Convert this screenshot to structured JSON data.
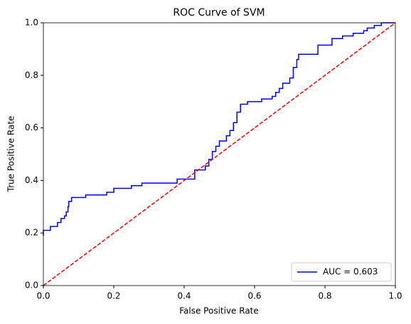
{
  "chart_data": {
    "type": "line",
    "title": "ROC Curve of SVM",
    "xlabel": "False Positive Rate",
    "ylabel": "True Positive Rate",
    "xlim": [
      0,
      1
    ],
    "ylim": [
      0,
      1
    ],
    "xticks": [
      {
        "value": 0,
        "label": "0.0"
      },
      0.2,
      0.4,
      0.6,
      0.8,
      {
        "value": 1,
        "label": "1.0"
      }
    ],
    "yticks": [
      {
        "value": 0,
        "label": "0.0"
      },
      0.2,
      0.4,
      0.6,
      0.8,
      {
        "value": 1,
        "label": "1.0"
      }
    ],
    "legend": "lower right",
    "grid": false,
    "series": [
      {
        "name": "AUC = 0.603",
        "color": "blue",
        "dashed": false,
        "x": [
          0,
          0,
          0.02,
          0.02,
          0.04,
          0.04,
          0.05,
          0.05,
          0.06,
          0.06,
          0.065,
          0.065,
          0.07,
          0.07,
          0.072,
          0.072,
          0.08,
          0.08,
          0.12,
          0.12,
          0.18,
          0.18,
          0.2,
          0.2,
          0.25,
          0.25,
          0.28,
          0.28,
          0.38,
          0.38,
          0.43,
          0.43,
          0.46,
          0.46,
          0.47,
          0.47,
          0.48,
          0.48,
          0.49,
          0.49,
          0.5,
          0.5,
          0.52,
          0.52,
          0.53,
          0.53,
          0.54,
          0.54,
          0.55,
          0.55,
          0.56,
          0.56,
          0.58,
          0.58,
          0.62,
          0.62,
          0.65,
          0.65,
          0.66,
          0.66,
          0.67,
          0.67,
          0.68,
          0.68,
          0.7,
          0.7,
          0.71,
          0.71,
          0.72,
          0.72,
          0.725,
          0.725,
          0.78,
          0.78,
          0.82,
          0.82,
          0.85,
          0.85,
          0.88,
          0.88,
          0.91,
          0.91,
          0.92,
          0.92,
          0.94,
          0.94,
          0.96,
          0.96,
          1.0
        ],
        "values": [
          0.19,
          0.21,
          0.21,
          0.225,
          0.225,
          0.24,
          0.24,
          0.255,
          0.255,
          0.265,
          0.265,
          0.28,
          0.28,
          0.3,
          0.3,
          0.32,
          0.32,
          0.335,
          0.335,
          0.345,
          0.345,
          0.355,
          0.355,
          0.37,
          0.37,
          0.38,
          0.38,
          0.39,
          0.39,
          0.405,
          0.405,
          0.44,
          0.44,
          0.455,
          0.455,
          0.48,
          0.48,
          0.51,
          0.51,
          0.53,
          0.53,
          0.55,
          0.55,
          0.57,
          0.57,
          0.59,
          0.59,
          0.62,
          0.62,
          0.66,
          0.66,
          0.69,
          0.69,
          0.7,
          0.7,
          0.71,
          0.71,
          0.72,
          0.72,
          0.735,
          0.735,
          0.75,
          0.75,
          0.77,
          0.77,
          0.79,
          0.79,
          0.83,
          0.83,
          0.86,
          0.86,
          0.88,
          0.88,
          0.915,
          0.915,
          0.94,
          0.94,
          0.95,
          0.95,
          0.96,
          0.96,
          0.97,
          0.97,
          0.98,
          0.98,
          0.99,
          0.99,
          1.0,
          1.0
        ]
      },
      {
        "color": "red",
        "dashed": true,
        "x": [
          0,
          1
        ],
        "values": [
          0,
          1
        ]
      }
    ]
  }
}
